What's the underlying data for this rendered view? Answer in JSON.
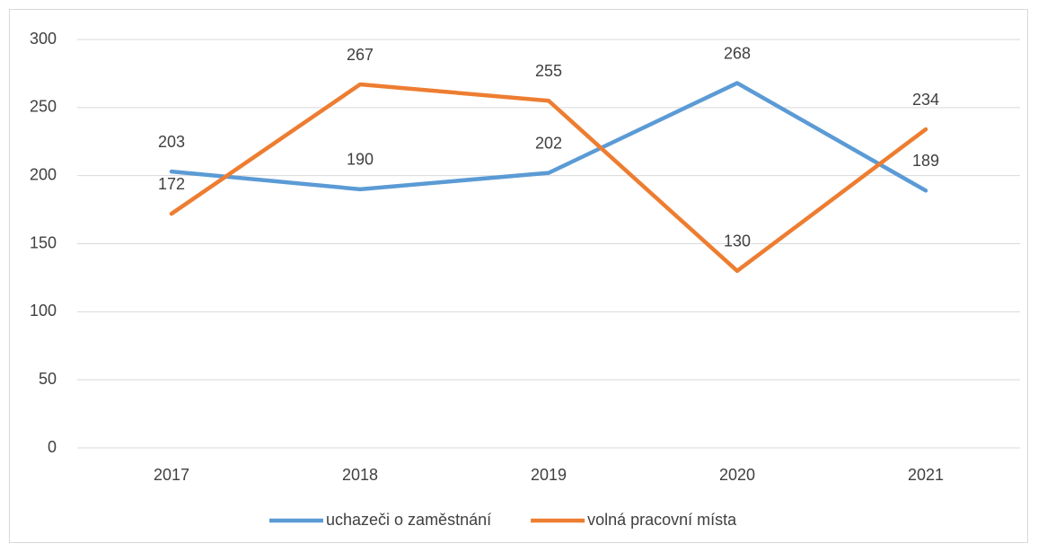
{
  "chart_data": {
    "type": "line",
    "categories": [
      "2017",
      "2018",
      "2019",
      "2020",
      "2021"
    ],
    "series": [
      {
        "name": "uchazeči o zaměstnání",
        "color": "#5b9bd5",
        "values": [
          203,
          190,
          202,
          268,
          189
        ]
      },
      {
        "name": "volná pracovní místa",
        "color": "#ed7d31",
        "values": [
          172,
          267,
          255,
          130,
          234
        ]
      }
    ],
    "ylim": [
      0,
      300
    ],
    "yticks": [
      0,
      50,
      100,
      150,
      200,
      250,
      300
    ],
    "grid": true,
    "legend": "bottom"
  }
}
